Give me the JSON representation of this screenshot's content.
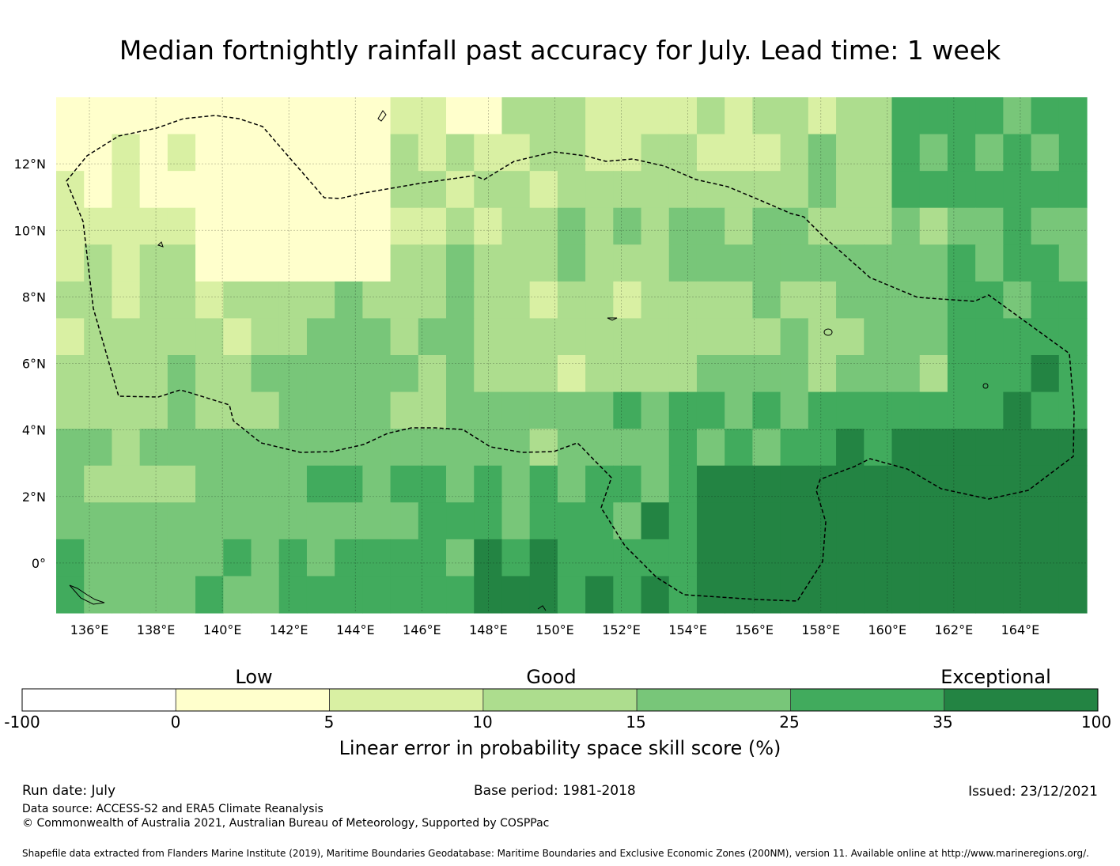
{
  "title": "Median fortnightly rainfall past accuracy for July. Lead time: 1 week",
  "map": {
    "longitude_labels": [
      "136°E",
      "138°E",
      "140°E",
      "142°E",
      "144°E",
      "146°E",
      "148°E",
      "150°E",
      "152°E",
      "154°E",
      "156°E",
      "158°E",
      "160°E",
      "162°E",
      "164°E"
    ],
    "latitude_labels": [
      "12°N",
      "10°N",
      "8°N",
      "6°N",
      "4°N",
      "2°N",
      "0°"
    ],
    "lon_range": [
      135,
      166
    ],
    "lat_range": [
      -1.5,
      14
    ],
    "skill_field_description": "Gridded skill score; higher (25-100%) along the southeast/equatorial region, lower (0-15%) in the north and central areas",
    "boundary_style": "dashed EEZ outline"
  },
  "colorbar": {
    "category_labels": [
      "Low",
      "Good",
      "Exceptional"
    ],
    "tick_labels": [
      "-100",
      "0",
      "5",
      "10",
      "15",
      "25",
      "35",
      "100"
    ],
    "bins": [
      {
        "from": -100,
        "to": 0,
        "color": "#ffffff"
      },
      {
        "from": 0,
        "to": 5,
        "color": "#ffffcc"
      },
      {
        "from": 5,
        "to": 10,
        "color": "#d9f0a3"
      },
      {
        "from": 10,
        "to": 15,
        "color": "#addd8e"
      },
      {
        "from": 15,
        "to": 25,
        "color": "#78c679"
      },
      {
        "from": 25,
        "to": 35,
        "color": "#41ab5d"
      },
      {
        "from": 35,
        "to": 100,
        "color": "#238443"
      }
    ],
    "axis_title": "Linear error in probability space skill score (%)"
  },
  "footer": {
    "run_date": "Run date: July",
    "base_period": "Base period: 1981-2018",
    "issued": "Issued: 23/12/2021",
    "data_source": "Data source: ACCESS-S2 and ERA5 Climate Reanalysis",
    "copyright": "© Commonwealth of Australia 2021, Australian Bureau of Meteorology, Supported by COSPPac",
    "shapefile": "Shapefile data extracted from Flanders Marine Institute (2019), Maritime Boundaries Geodatabase: Maritime Boundaries and Exclusive Economic Zones (200NM), version 11. Available online at http://www.marineregions.org/."
  }
}
